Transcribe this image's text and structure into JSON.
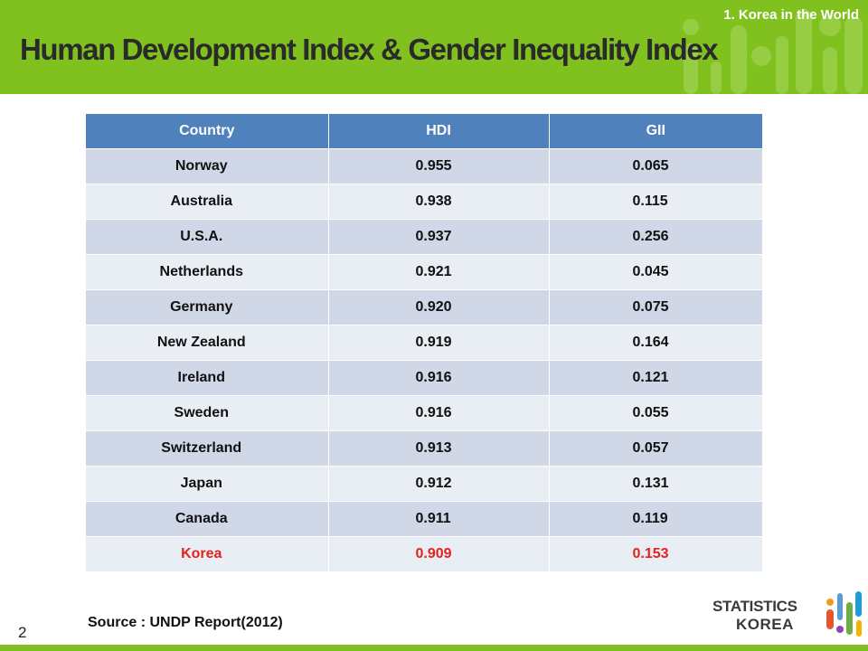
{
  "header": {
    "section_label": "1.  Korea in the World",
    "title": "Human Development Index & Gender Inequality Index"
  },
  "table": {
    "columns": [
      "Country",
      "HDI",
      "GII"
    ],
    "rows": [
      {
        "country": "Norway",
        "hdi": "0.955",
        "gii": "0.065"
      },
      {
        "country": "Australia",
        "hdi": "0.938",
        "gii": "0.115"
      },
      {
        "country": "U.S.A.",
        "hdi": "0.937",
        "gii": "0.256"
      },
      {
        "country": "Netherlands",
        "hdi": "0.921",
        "gii": "0.045"
      },
      {
        "country": "Germany",
        "hdi": "0.920",
        "gii": "0.075"
      },
      {
        "country": "New  Zealand",
        "hdi": "0.919",
        "gii": "0.164"
      },
      {
        "country": "Ireland",
        "hdi": "0.916",
        "gii": "0.121"
      },
      {
        "country": "Sweden",
        "hdi": "0.916",
        "gii": "0.055"
      },
      {
        "country": "Switzerland",
        "hdi": "0.913",
        "gii": "0.057"
      },
      {
        "country": "Japan",
        "hdi": "0.912",
        "gii": "0.131"
      },
      {
        "country": "Canada",
        "hdi": "0.911",
        "gii": "0.119"
      },
      {
        "country": "Korea",
        "hdi": "0.909",
        "gii": "0.153",
        "highlight": true
      }
    ],
    "highlight_color": "#e3221c"
  },
  "footer": {
    "source": "Source : UNDP Report(2012)",
    "page_number": "2"
  },
  "logo": {
    "line1": "STATISTICS",
    "line2": "KOREA",
    "icon": "statistics-korea-logo-icon"
  },
  "colors": {
    "accent_green": "#80c11f",
    "table_header": "#4f81bd",
    "row_odd": "#d0d8e8",
    "row_even": "#e9edf4"
  }
}
